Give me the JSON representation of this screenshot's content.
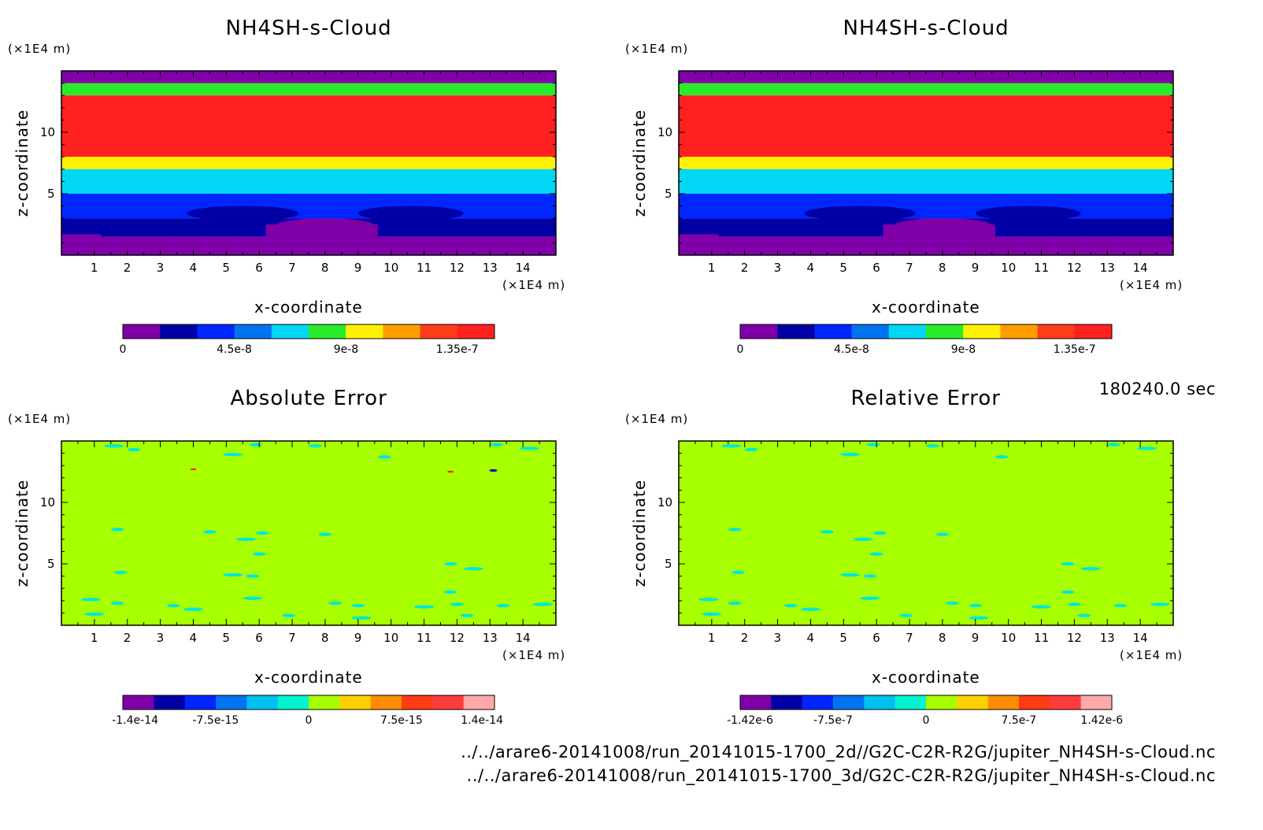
{
  "time_label": "180240.0 sec",
  "footer": {
    "file_2d": "../../arare6-20141008/run_20141015-1700_2d//G2C-C2R-R2G/jupiter_NH4SH-s-Cloud.nc",
    "file_3d": "../../arare6-20141008/run_20141015-1700_3d/G2C-C2R-R2G/jupiter_NH4SH-s-Cloud.nc"
  },
  "colors": {
    "cloud_levels": [
      "#7f00a8",
      "#0000a6",
      "#0026ff",
      "#0074f0",
      "#00d7f5",
      "#2aeb2a",
      "#fff200",
      "#ff9d00",
      "#ff3c1a",
      "#ff2020"
    ],
    "error_levels": [
      "#7f00a8",
      "#0000a6",
      "#0026ff",
      "#0074f0",
      "#00c0f0",
      "#00f5d0",
      "#a8ff00",
      "#ffd000",
      "#ff8c00",
      "#ff3c14",
      "#ff3c3c",
      "#ffaaaa"
    ],
    "error_background": "#a8ff00",
    "speck_colors": [
      "#00e8d8",
      "#0000c0",
      "#ff2020"
    ]
  },
  "chart_data": [
    {
      "type": "heatmap",
      "title": "NH4SH-s-Cloud",
      "xlabel": "x-coordinate",
      "ylabel": "z-coordinate",
      "xunit": "(×1E4 m)",
      "yunit": "(×1E4 m)",
      "xlim": [
        0,
        15
      ],
      "ylim": [
        0,
        15
      ],
      "xticks": [
        "1",
        "2",
        "3",
        "4",
        "5",
        "6",
        "7",
        "8",
        "9",
        "10",
        "11",
        "12",
        "13",
        "14"
      ],
      "yticks": [
        "5",
        "10"
      ],
      "colorbar": {
        "range": [
          0,
          1.5e-07
        ],
        "n_levels": 10,
        "tick_labels": [
          "0",
          "4.5e-8",
          "9e-8",
          "1.35e-7"
        ],
        "tick_values": [
          0,
          4.5e-08,
          9e-08,
          1.35e-07
        ]
      },
      "z_bands": [
        {
          "z_from": 14.0,
          "z_to": 15.0,
          "level": 0
        },
        {
          "z_from": 13.0,
          "z_to": 14.0,
          "level": 5
        },
        {
          "z_from": 8.0,
          "z_to": 13.0,
          "level": 9
        },
        {
          "z_from": 7.0,
          "z_to": 8.0,
          "level": 6
        },
        {
          "z_from": 5.0,
          "z_to": 7.0,
          "level": 4
        },
        {
          "z_from": 3.0,
          "z_to": 5.0,
          "level": 2
        },
        {
          "z_from": 1.5,
          "z_to": 3.0,
          "level": 1
        },
        {
          "z_from": 0.0,
          "z_to": 1.5,
          "level": 0
        }
      ]
    },
    {
      "type": "heatmap",
      "title": "NH4SH-s-Cloud",
      "xlabel": "x-coordinate",
      "ylabel": "z-coordinate",
      "xunit": "(×1E4 m)",
      "yunit": "(×1E4 m)",
      "xlim": [
        0,
        15
      ],
      "ylim": [
        0,
        15
      ],
      "xticks": [
        "1",
        "2",
        "3",
        "4",
        "5",
        "6",
        "7",
        "8",
        "9",
        "10",
        "11",
        "12",
        "13",
        "14"
      ],
      "yticks": [
        "5",
        "10"
      ],
      "colorbar": {
        "range": [
          0,
          1.5e-07
        ],
        "n_levels": 10,
        "tick_labels": [
          "0",
          "4.5e-8",
          "9e-8",
          "1.35e-7"
        ],
        "tick_values": [
          0,
          4.5e-08,
          9e-08,
          1.35e-07
        ]
      },
      "z_bands": [
        {
          "z_from": 14.0,
          "z_to": 15.0,
          "level": 0
        },
        {
          "z_from": 13.0,
          "z_to": 14.0,
          "level": 5
        },
        {
          "z_from": 8.0,
          "z_to": 13.0,
          "level": 9
        },
        {
          "z_from": 7.0,
          "z_to": 8.0,
          "level": 6
        },
        {
          "z_from": 5.0,
          "z_to": 7.0,
          "level": 4
        },
        {
          "z_from": 3.0,
          "z_to": 5.0,
          "level": 2
        },
        {
          "z_from": 1.5,
          "z_to": 3.0,
          "level": 1
        },
        {
          "z_from": 0.0,
          "z_to": 1.5,
          "level": 0
        }
      ]
    },
    {
      "type": "heatmap",
      "title": "Absolute Error",
      "xlabel": "x-coordinate",
      "ylabel": "z-coordinate",
      "xunit": "(×1E4 m)",
      "yunit": "(×1E4 m)",
      "xlim": [
        0,
        15
      ],
      "ylim": [
        0,
        15
      ],
      "xticks": [
        "1",
        "2",
        "3",
        "4",
        "5",
        "6",
        "7",
        "8",
        "9",
        "10",
        "11",
        "12",
        "13",
        "14"
      ],
      "yticks": [
        "5",
        "10"
      ],
      "colorbar": {
        "range": [
          -1.5e-14,
          1.5e-14
        ],
        "n_levels": 12,
        "tick_labels": [
          "-1.4e-14",
          "-7.5e-15",
          "0",
          "7.5e-15",
          "1.4e-14"
        ],
        "tick_values": [
          -1.4e-14,
          -7.5e-15,
          0,
          7.5e-15,
          1.4e-14
        ]
      }
    },
    {
      "type": "heatmap",
      "title": "Relative Error",
      "xlabel": "x-coordinate",
      "ylabel": "z-coordinate",
      "xunit": "(×1E4 m)",
      "yunit": "(×1E4 m)",
      "xlim": [
        0,
        15
      ],
      "ylim": [
        0,
        15
      ],
      "xticks": [
        "1",
        "2",
        "3",
        "4",
        "5",
        "6",
        "7",
        "8",
        "9",
        "10",
        "11",
        "12",
        "13",
        "14"
      ],
      "yticks": [
        "5",
        "10"
      ],
      "colorbar": {
        "range": [
          -1.5e-06,
          1.5e-06
        ],
        "n_levels": 12,
        "tick_labels": [
          "-1.42e-6",
          "-7.5e-7",
          "0",
          "7.5e-7",
          "1.42e-6"
        ],
        "tick_values": [
          -1.42e-06,
          -7.5e-07,
          0,
          7.5e-07,
          1.42e-06
        ]
      }
    }
  ]
}
